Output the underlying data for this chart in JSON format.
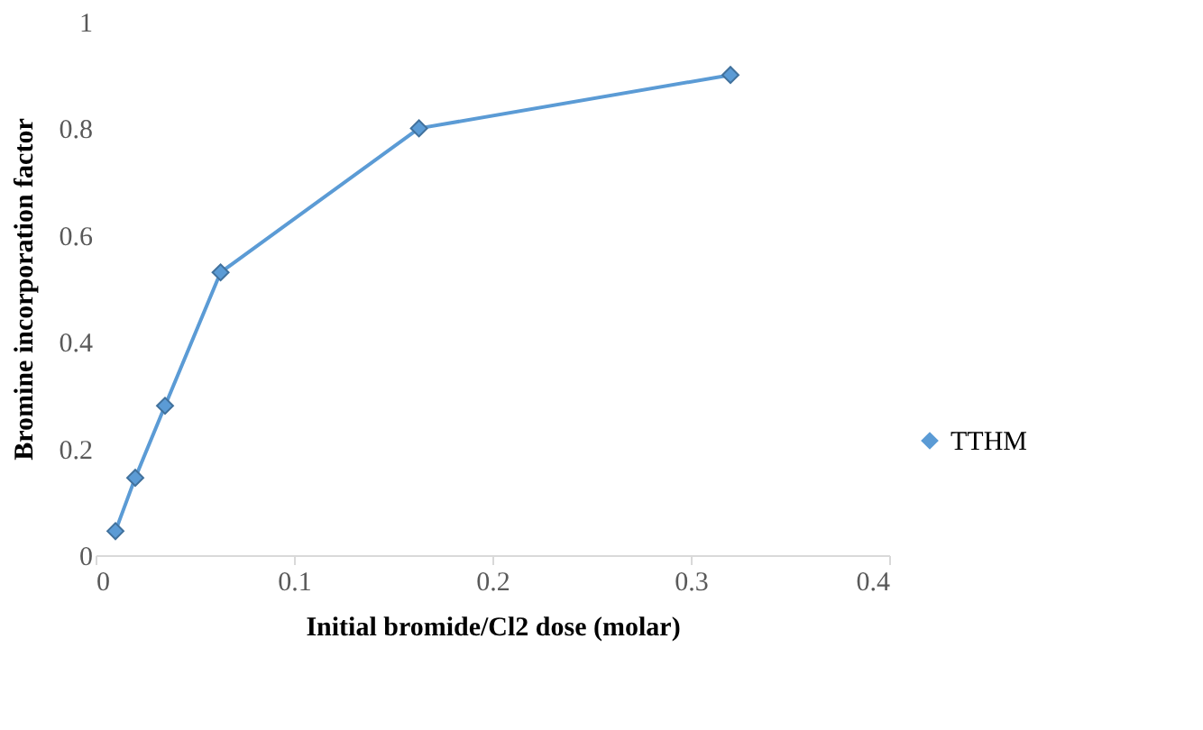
{
  "chart_data": {
    "type": "line",
    "xlabel": "Initial bromide/Cl2 dose (molar)",
    "ylabel": "Bromine incorporation factor",
    "x": [
      0.01,
      0.02,
      0.035,
      0.063,
      0.163,
      0.32
    ],
    "series": [
      {
        "name": "TTHM",
        "color": "#5b9bd5",
        "values": [
          0.045,
          0.145,
          0.28,
          0.53,
          0.8,
          0.9
        ]
      }
    ],
    "xlim": [
      0,
      0.4
    ],
    "xticks": [
      0,
      0.1,
      0.2,
      0.3,
      0.4
    ],
    "ylim": [
      0,
      1
    ],
    "yticks": [
      0,
      0.2,
      0.4,
      0.6,
      0.8,
      1
    ],
    "grid": false,
    "legend": "right",
    "marker": "diamond",
    "line_style": "solid"
  }
}
